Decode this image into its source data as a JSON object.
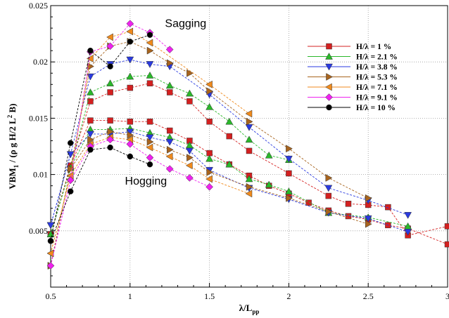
{
  "chart_data": {
    "type": "line",
    "xlabel_main": "λ/L",
    "xlabel_sub": "pp",
    "ylabel_parts": {
      "a": "VBM",
      "b": "1",
      "c": " / (ρ g H/2 L",
      "d": "2",
      "e": " B)"
    },
    "xlim": [
      0.5,
      3
    ],
    "ylim": [
      0.0,
      0.025
    ],
    "x_ticks": [
      "0.5",
      "1",
      "1.5",
      "2",
      "2.5",
      "3"
    ],
    "x_tick_values": [
      0.5,
      1,
      1.5,
      2,
      2.5,
      3
    ],
    "y_ticks": [
      "0.005",
      "0.01",
      "0.015",
      "0.02",
      "0.025"
    ],
    "y_tick_values": [
      0.005,
      0.01,
      0.015,
      0.02,
      0.025
    ],
    "grid": "dotted",
    "legend_position": "upper-right",
    "annotations": [
      {
        "text": "Sagging",
        "x": 1.35,
        "y": 0.0231
      },
      {
        "text": "Hogging",
        "x": 1.1,
        "y": 0.0091
      }
    ],
    "series": [
      {
        "name": "H/λ = 1 %",
        "color": "#d42020",
        "marker": "square",
        "sagging": [
          [
            0.5,
            0.0047
          ],
          [
            0.625,
            0.0108
          ],
          [
            0.75,
            0.0165
          ],
          [
            0.875,
            0.0173
          ],
          [
            1,
            0.0177
          ],
          [
            1.125,
            0.0181
          ],
          [
            1.25,
            0.0173
          ],
          [
            1.375,
            0.0165
          ],
          [
            1.5,
            0.0147
          ],
          [
            1.625,
            0.0134
          ],
          [
            1.75,
            0.0121
          ],
          [
            2,
            0.0101
          ],
          [
            2.25,
            0.0081
          ],
          [
            2.375,
            0.0074
          ],
          [
            2.5,
            0.0073
          ],
          [
            2.625,
            0.0071
          ],
          [
            2.75,
            0.0046
          ],
          [
            3,
            0.0054
          ]
        ],
        "hogging": [
          [
            0.5,
            0.0047
          ],
          [
            0.625,
            0.0108
          ],
          [
            0.75,
            0.0148
          ],
          [
            0.875,
            0.0148
          ],
          [
            1,
            0.0147
          ],
          [
            1.125,
            0.0147
          ],
          [
            1.25,
            0.0139
          ],
          [
            1.375,
            0.013
          ],
          [
            1.5,
            0.0119
          ],
          [
            1.625,
            0.0109
          ],
          [
            1.75,
            0.0099
          ],
          [
            1.875,
            0.009
          ],
          [
            2,
            0.0083
          ],
          [
            2.125,
            0.0075
          ],
          [
            2.25,
            0.0068
          ],
          [
            2.375,
            0.0063
          ],
          [
            2.5,
            0.006
          ],
          [
            2.625,
            0.0055
          ],
          [
            2.75,
            0.0052
          ],
          [
            3,
            0.0038
          ]
        ]
      },
      {
        "name": "H/λ = 2.1 %",
        "color": "#2ab82a",
        "marker": "triangle-up",
        "sagging": [
          [
            0.5,
            0.0047
          ],
          [
            0.625,
            0.0106
          ],
          [
            0.75,
            0.0173
          ],
          [
            0.875,
            0.0181
          ],
          [
            1,
            0.0187
          ],
          [
            1.125,
            0.0188
          ],
          [
            1.25,
            0.0179
          ],
          [
            1.375,
            0.0172
          ],
          [
            1.5,
            0.016
          ],
          [
            1.625,
            0.0147
          ],
          [
            1.75,
            0.0131
          ],
          [
            1.875,
            0.0117
          ],
          [
            2,
            0.0113
          ]
        ],
        "hogging": [
          [
            0.5,
            0.0047
          ],
          [
            0.625,
            0.0106
          ],
          [
            0.75,
            0.014
          ],
          [
            0.875,
            0.014
          ],
          [
            1,
            0.0141
          ],
          [
            1.125,
            0.0137
          ],
          [
            1.25,
            0.0133
          ],
          [
            1.375,
            0.0126
          ],
          [
            1.5,
            0.0114
          ],
          [
            1.625,
            0.0109
          ],
          [
            1.75,
            0.0096
          ],
          [
            1.875,
            0.0091
          ],
          [
            2,
            0.0085
          ],
          [
            2.25,
            0.0066
          ],
          [
            2.5,
            0.0062
          ],
          [
            2.75,
            0.0054
          ]
        ]
      },
      {
        "name": "H/λ = 3.8 %",
        "color": "#2a3ae0",
        "marker": "triangle-down",
        "sagging": [
          [
            0.5,
            0.0055
          ],
          [
            0.625,
            0.0118
          ],
          [
            0.75,
            0.0187
          ],
          [
            0.875,
            0.0198
          ],
          [
            1,
            0.0202
          ],
          [
            1.125,
            0.0198
          ],
          [
            1.25,
            0.0196
          ],
          [
            1.5,
            0.0171
          ],
          [
            1.75,
            0.0142
          ],
          [
            2,
            0.0114
          ],
          [
            2.25,
            0.0088
          ],
          [
            2.5,
            0.0077
          ],
          [
            2.75,
            0.0064
          ]
        ],
        "hogging": [
          [
            0.5,
            0.0055
          ],
          [
            0.625,
            0.0118
          ],
          [
            0.75,
            0.0136
          ],
          [
            0.875,
            0.0136
          ],
          [
            1,
            0.0138
          ],
          [
            1.125,
            0.0133
          ],
          [
            1.25,
            0.0129
          ],
          [
            1.375,
            0.0121
          ],
          [
            1.5,
            0.0104
          ],
          [
            1.75,
            0.0088
          ],
          [
            2,
            0.0078
          ],
          [
            2.25,
            0.0066
          ],
          [
            2.5,
            0.0061
          ],
          [
            2.75,
            0.0049
          ]
        ]
      },
      {
        "name": "H/λ = 5.3 %",
        "color": "#a8641e",
        "marker": "triangle-right",
        "sagging": [
          [
            0.5,
            0.0019
          ],
          [
            0.625,
            0.0105
          ],
          [
            0.75,
            0.0196
          ],
          [
            0.875,
            0.0214
          ],
          [
            1,
            0.0218
          ],
          [
            1.125,
            0.021
          ],
          [
            1.25,
            0.0199
          ],
          [
            1.375,
            0.019
          ],
          [
            1.5,
            0.0174
          ],
          [
            1.75,
            0.0147
          ],
          [
            2,
            0.0123
          ],
          [
            2.25,
            0.0097
          ],
          [
            2.5,
            0.0079
          ]
        ],
        "hogging": [
          [
            0.5,
            0.0019
          ],
          [
            0.625,
            0.0105
          ],
          [
            0.75,
            0.0131
          ],
          [
            0.875,
            0.0138
          ],
          [
            1,
            0.0135
          ],
          [
            1.125,
            0.0129
          ],
          [
            1.25,
            0.0122
          ],
          [
            1.375,
            0.0115
          ],
          [
            1.5,
            0.0102
          ],
          [
            1.75,
            0.0089
          ],
          [
            2,
            0.0079
          ],
          [
            2.25,
            0.0067
          ],
          [
            2.5,
            0.0056
          ]
        ]
      },
      {
        "name": "H/λ = 7.1 %",
        "color": "#f08a1c",
        "marker": "triangle-left",
        "sagging": [
          [
            0.5,
            0.003
          ],
          [
            0.625,
            0.0099
          ],
          [
            0.75,
            0.0203
          ],
          [
            0.875,
            0.0222
          ],
          [
            1,
            0.0227
          ],
          [
            1.125,
            0.0217
          ],
          [
            1.5,
            0.018
          ],
          [
            1.75,
            0.0154
          ]
        ],
        "hogging": [
          [
            0.5,
            0.003
          ],
          [
            0.625,
            0.0099
          ],
          [
            0.75,
            0.0127
          ],
          [
            0.875,
            0.0133
          ],
          [
            1,
            0.0131
          ],
          [
            1.125,
            0.0124
          ],
          [
            1.25,
            0.0116
          ],
          [
            1.375,
            0.0108
          ],
          [
            1.5,
            0.0096
          ],
          [
            1.75,
            0.0083
          ]
        ]
      },
      {
        "name": "H/λ = 9.1 %",
        "color": "#ee22ee",
        "marker": "diamond",
        "sagging": [
          [
            0.5,
            0.0019
          ],
          [
            0.625,
            0.0095
          ],
          [
            0.75,
            0.0209
          ],
          [
            0.875,
            0.0214
          ],
          [
            1,
            0.0234
          ],
          [
            1.125,
            0.0226
          ],
          [
            1.25,
            0.0211
          ]
        ],
        "hogging": [
          [
            0.5,
            0.0019
          ],
          [
            0.625,
            0.0095
          ],
          [
            0.75,
            0.0125
          ],
          [
            0.875,
            0.0131
          ],
          [
            1,
            0.0127
          ],
          [
            1.125,
            0.0115
          ],
          [
            1.25,
            0.0105
          ],
          [
            1.375,
            0.0097
          ],
          [
            1.5,
            0.0089
          ]
        ]
      },
      {
        "name": "H/λ = 10 %",
        "color": "#000000",
        "marker": "circle",
        "sagging": [
          [
            0.5,
            0.0041
          ],
          [
            0.625,
            0.0128
          ],
          [
            0.75,
            0.021
          ],
          [
            0.875,
            0.0196
          ],
          [
            1,
            0.0218
          ],
          [
            1.125,
            0.0224
          ]
        ],
        "hogging": [
          [
            0.5,
            0.0041
          ],
          [
            0.625,
            0.0085
          ],
          [
            0.75,
            0.0122
          ],
          [
            0.875,
            0.0124
          ],
          [
            1,
            0.0116
          ],
          [
            1.125,
            0.0109
          ]
        ]
      }
    ]
  }
}
